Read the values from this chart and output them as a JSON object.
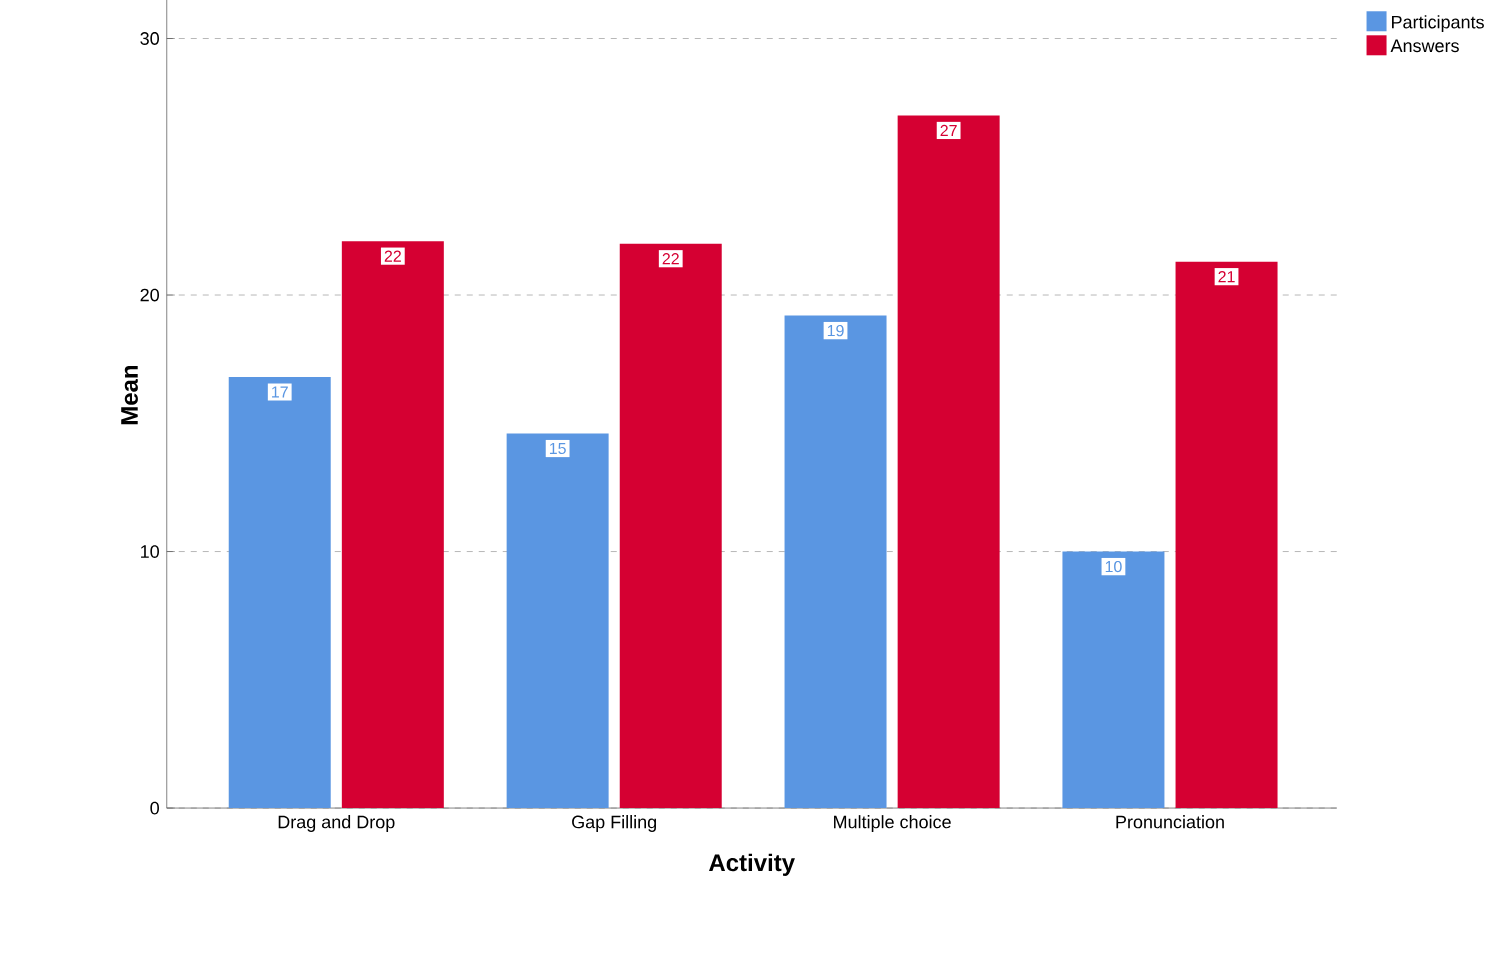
{
  "chart_data": {
    "type": "bar",
    "xlabel": "Activity",
    "ylabel": "Mean",
    "categories": [
      "Drag and Drop",
      "Gap Filling",
      "Multiple choice",
      "Pronunciation"
    ],
    "series": [
      {
        "name": "Participants",
        "color": "#5a96e2",
        "values": [
          16.8,
          14.6,
          19.2,
          10.0
        ],
        "value_labels": [
          "17",
          "15",
          "19",
          "10"
        ]
      },
      {
        "name": "Answers",
        "color": "#d50032",
        "values": [
          22.1,
          22.0,
          27.0,
          21.3
        ],
        "value_labels": [
          "22",
          "22",
          "27",
          "21"
        ]
      }
    ],
    "ylim": [
      0,
      32.2
    ],
    "yticks": [
      0,
      10,
      20,
      30
    ],
    "grid": "y",
    "legend": "right"
  }
}
